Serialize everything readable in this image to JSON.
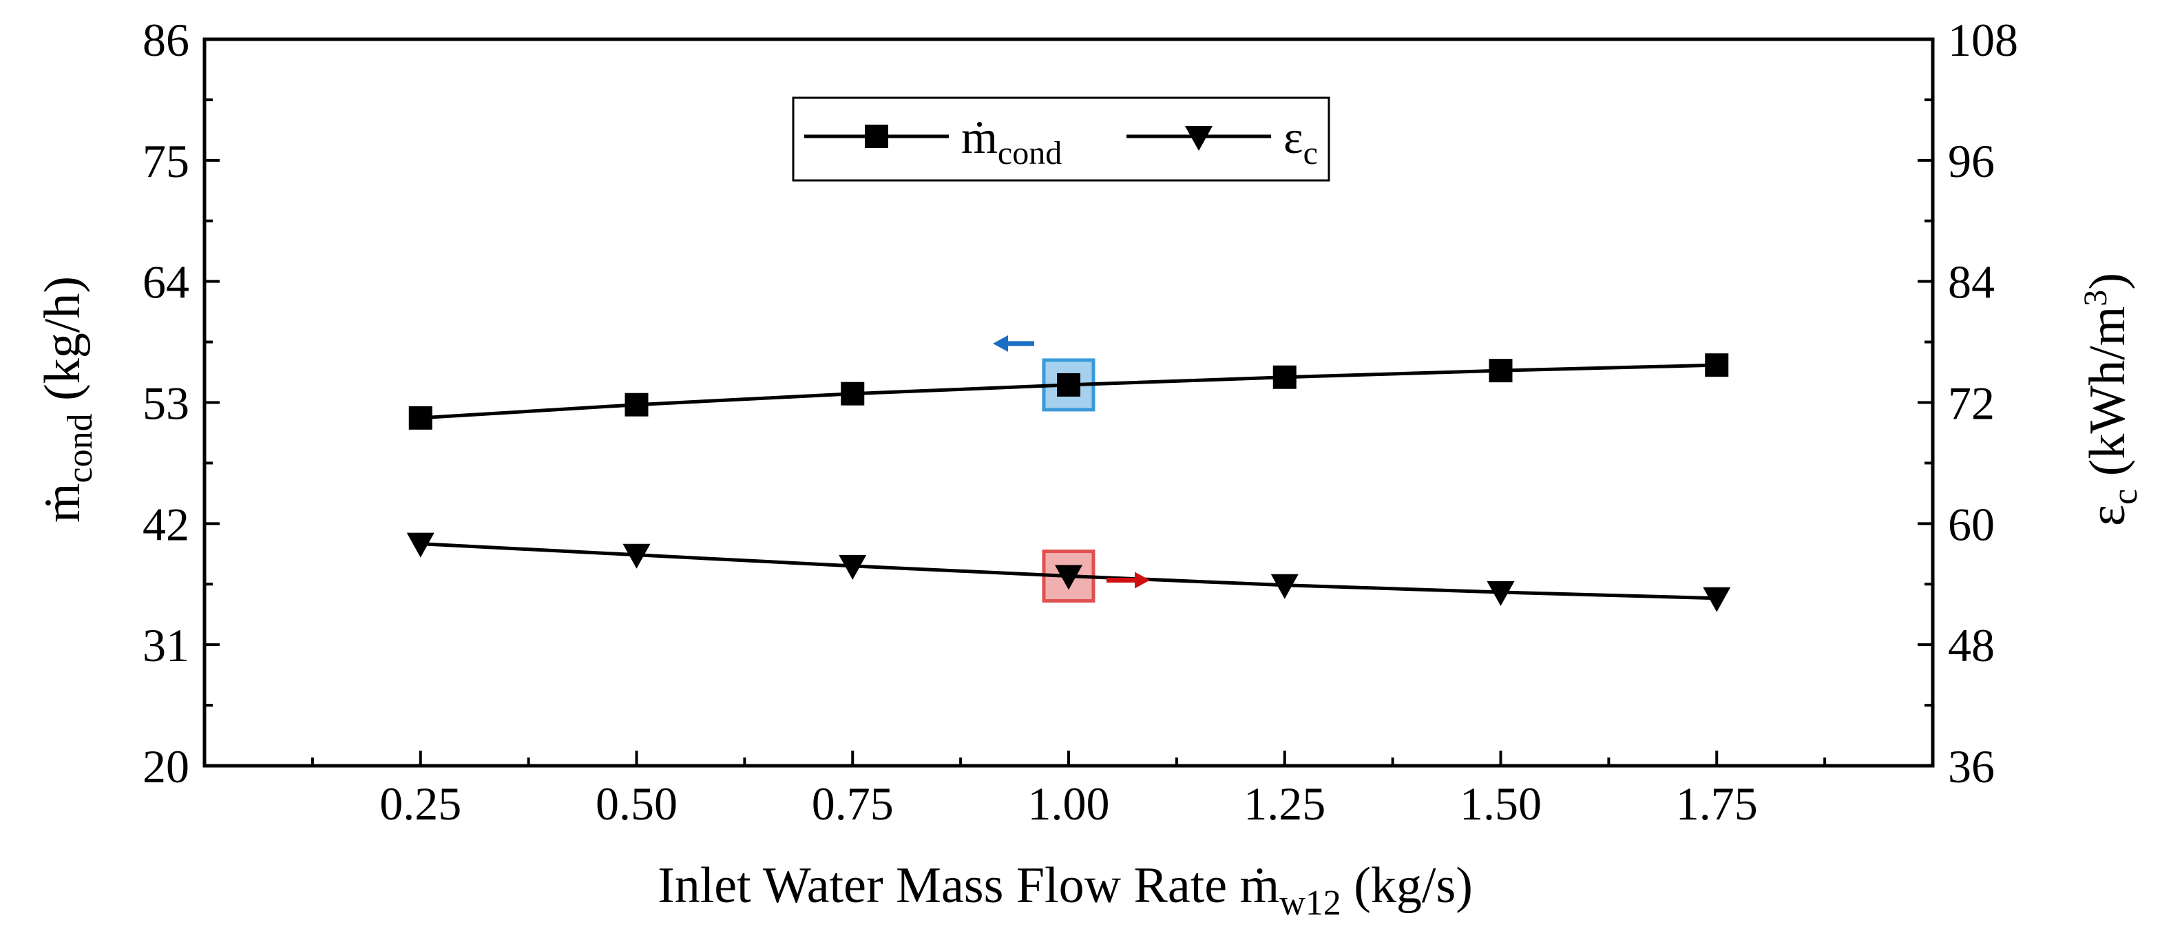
{
  "chart_data": {
    "type": "line",
    "title": "",
    "x": [
      0.25,
      0.5,
      0.75,
      1.0,
      1.25,
      1.5,
      1.75
    ],
    "xlabel": {
      "main": "Inlet Water Mass Flow Rate ",
      "symbol": "ṁ",
      "subscript": "w12",
      "unit": " (kg/s)"
    },
    "xlim": [
      0.0,
      2.0
    ],
    "xtick_labels": [
      "0.25",
      "0.50",
      "0.75",
      "1.00",
      "1.25",
      "1.50",
      "1.75"
    ],
    "ylabel_left": {
      "symbol": "ṁ",
      "subscript": "cond",
      "unit": " (kg/h)"
    },
    "ylim_left": [
      20,
      86
    ],
    "ytick_labels_left": [
      "20",
      "31",
      "42",
      "53",
      "64",
      "75",
      "86"
    ],
    "ylabel_right": {
      "symbol": "ε",
      "subscript": "c",
      "unit_pre": " (kWh/m",
      "unit_sup": "3",
      "unit_post": ")"
    },
    "ylim_right": [
      36,
      108
    ],
    "ytick_labels_right": [
      "36",
      "48",
      "60",
      "72",
      "84",
      "96",
      "108"
    ],
    "series": [
      {
        "name": "ṁcond",
        "legend_symbol": "ṁ",
        "legend_subscript": "cond",
        "axis": "left",
        "marker": "square",
        "values": [
          51.6,
          52.8,
          53.8,
          54.6,
          55.3,
          55.9,
          56.4
        ],
        "highlight_index": 3,
        "highlight_color": "#3a9ad9",
        "arrow": "left",
        "arrow_color": "#1a6fc4"
      },
      {
        "name": "εc",
        "legend_symbol": "ε",
        "legend_subscript": "c",
        "axis": "right",
        "marker": "triangle-down",
        "values": [
          58.0,
          56.9,
          55.8,
          54.8,
          53.9,
          53.2,
          52.6
        ],
        "highlight_index": 3,
        "highlight_color": "#e05050",
        "arrow": "right",
        "arrow_color": "#d01010"
      }
    ],
    "legend": {
      "position": "top-center",
      "entries": [
        "ṁcond",
        "εc"
      ]
    },
    "grid": false
  }
}
